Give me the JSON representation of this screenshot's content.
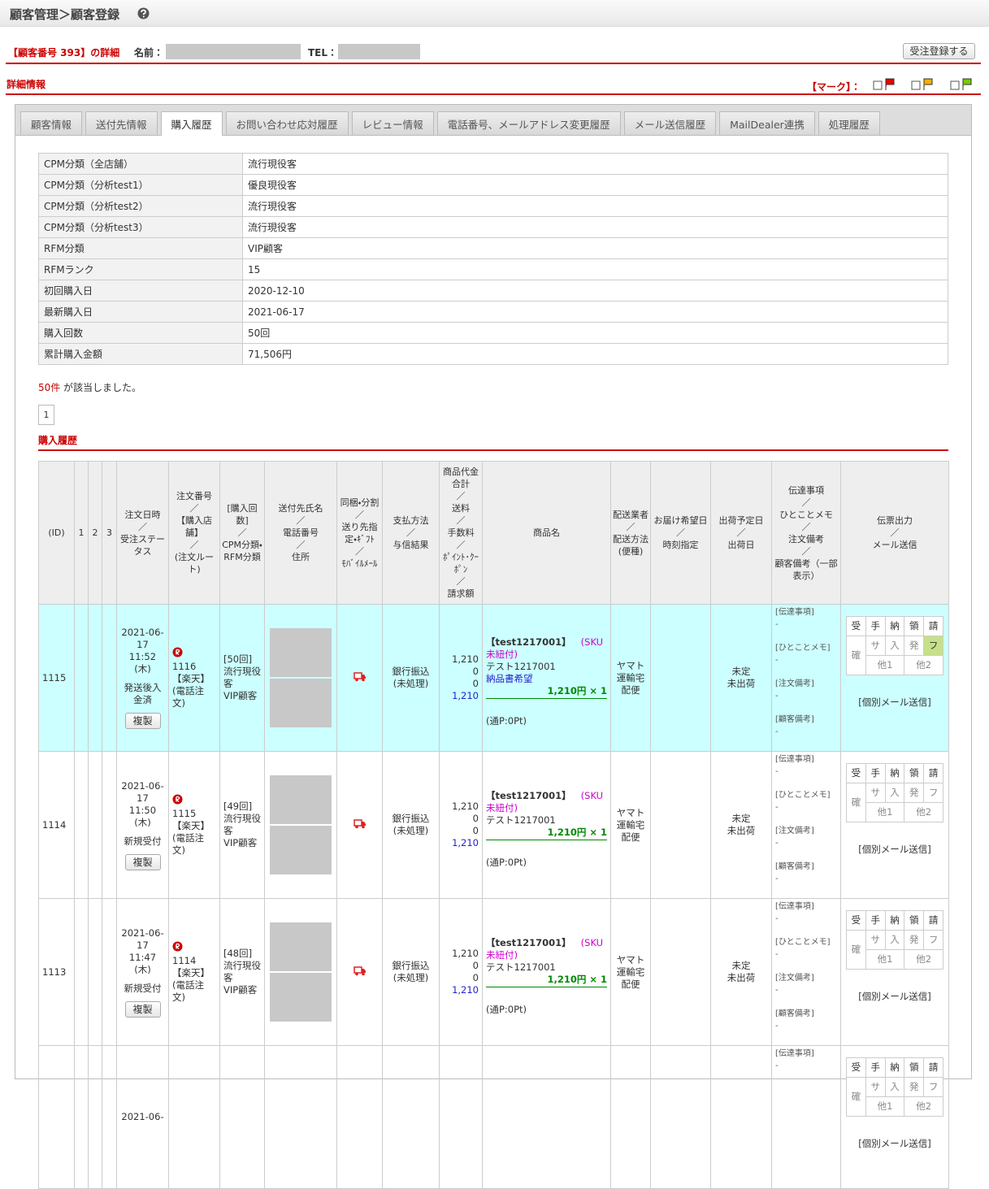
{
  "header": {
    "title": "顧客管理＞顧客登録"
  },
  "customer": {
    "label": "【顧客番号 393】の詳細",
    "name_label": "名前：",
    "tel_label": "TEL：",
    "button": "受注登録する"
  },
  "detail": {
    "title": "詳細情報",
    "mark_label": "【マーク】："
  },
  "tabs": {
    "items": [
      "顧客情報",
      "送付先情報",
      "購入履歴",
      "お問い合わせ応対履歴",
      "レビュー情報",
      "電話番号、メールアドレス変更履歴",
      "メール送信履歴",
      "MailDealer連携",
      "処理履歴"
    ],
    "active": 2
  },
  "summary": {
    "rows": [
      [
        "CPM分類（全店舗）",
        "流行現役客"
      ],
      [
        "CPM分類（分析test1）",
        "優良現役客"
      ],
      [
        "CPM分類（分析test2）",
        "流行現役客"
      ],
      [
        "CPM分類（分析test3）",
        "流行現役客"
      ],
      [
        "RFM分類",
        "VIP顧客"
      ],
      [
        "RFMランク",
        "15"
      ],
      [
        "初回購入日",
        "2020-12-10"
      ],
      [
        "最新購入日",
        "2021-06-17"
      ],
      [
        "購入回数",
        "50回"
      ],
      [
        "累計購入金額",
        "71,506円"
      ]
    ]
  },
  "result": {
    "count": "50件",
    "text": "が該当しました。",
    "page": "1"
  },
  "history": {
    "title": "購入履歴",
    "headers": [
      "(ID)",
      "1",
      "2",
      "3",
      "注文日時\n／\n受注ステータス",
      "注文番号\n／\n【購入店舗】\n／\n(注文ルート)",
      "[購入回数]\n／\nCPM分類・RFM分類",
      "送付先氏名\n／\n電話番号\n／\n住所",
      "同梱・分割\n／\n送り先指定・ｷﾞﾌﾄ\n／\nﾓﾊﾞｲﾙﾒｰﾙ",
      "支払方法\n／\n与信結果",
      "商品代金合計\n／\n送料\n／\n手数料\n／\nﾎﾟｲﾝﾄ･ｸｰﾎﾟﾝ\n／\n請求額",
      "商品名",
      "配送業者\n／\n配送方法(便種)",
      "お届け希望日\n／\n時刻指定",
      "出荷予定日\n／\n出荷日",
      "伝達事項\n／\nひとことメモ\n／\n注文備考\n／\n顧客備考（一部表示）",
      "伝票出力\n／\nメール送信"
    ],
    "copy_button": "複製",
    "mail_link": "[個別メール送信]",
    "stamps": {
      "top": [
        "受",
        "手",
        "納",
        "領",
        "請"
      ],
      "left": "確",
      "mid": [
        "サ",
        "入",
        "発",
        "フ"
      ],
      "bottom": [
        "他1",
        "他2"
      ]
    },
    "rows": [
      {
        "id": "1115",
        "date": "2021-06-17",
        "time": "11:52",
        "weekday": "(木)",
        "status": "発送後入金済",
        "order_no": "1116",
        "shop": "【楽天】",
        "route": "(電話注文)",
        "count": "[50回]",
        "cpm": "流行現役客",
        "rfm": "VIP顧客",
        "payment": "銀行振込",
        "credit": "(未処理)",
        "amounts": [
          "1,210",
          "0",
          "0",
          "1,210"
        ],
        "product_code": "【test1217001】",
        "sku": "(SKU未紐付)",
        "product_name": "テスト1217001",
        "note": "納品書希望",
        "price": "1,210円 × 1",
        "points": "(通P:0Pt)",
        "carrier": "ヤマト運輸宅配便",
        "ship_plan": "未定",
        "ship_status": "未出荷",
        "memo": [
          "[伝達事項]",
          "-",
          "[ひとことメモ]",
          "-",
          "[注文備考]",
          "-",
          "[顧客備考]",
          "-"
        ]
      },
      {
        "id": "1114",
        "date": "2021-06-17",
        "time": "11:50",
        "weekday": "(木)",
        "status": "新規受付",
        "order_no": "1115",
        "shop": "【楽天】",
        "route": "(電話注文)",
        "count": "[49回]",
        "cpm": "流行現役客",
        "rfm": "VIP顧客",
        "payment": "銀行振込",
        "credit": "(未処理)",
        "amounts": [
          "1,210",
          "0",
          "0",
          "1,210"
        ],
        "product_code": "【test1217001】",
        "sku": "(SKU未紐付)",
        "product_name": "テスト1217001",
        "price": "1,210円 × 1",
        "points": "(通P:0Pt)",
        "carrier": "ヤマト運輸宅配便",
        "ship_plan": "未定",
        "ship_status": "未出荷",
        "memo": [
          "[伝達事項]",
          "-",
          "[ひとことメモ]",
          "-",
          "[注文備考]",
          "-",
          "[顧客備考]",
          "-"
        ]
      },
      {
        "id": "1113",
        "date": "2021-06-17",
        "time": "11:47",
        "weekday": "(木)",
        "status": "新規受付",
        "order_no": "1114",
        "shop": "【楽天】",
        "route": "(電話注文)",
        "count": "[48回]",
        "cpm": "流行現役客",
        "rfm": "VIP顧客",
        "payment": "銀行振込",
        "credit": "(未処理)",
        "amounts": [
          "1,210",
          "0",
          "0",
          "1,210"
        ],
        "product_code": "【test1217001】",
        "sku": "(SKU未紐付)",
        "product_name": "テスト1217001",
        "price": "1,210円 × 1",
        "points": "(通P:0Pt)",
        "carrier": "ヤマト運輸宅配便",
        "ship_plan": "未定",
        "ship_status": "未出荷",
        "memo": [
          "[伝達事項]",
          "-",
          "[ひとことメモ]",
          "-",
          "[注文備考]",
          "-",
          "[顧客備考]",
          "-"
        ]
      },
      {
        "date": "2021-06-",
        "memo": [
          "[伝達事項]",
          "-"
        ]
      }
    ]
  }
}
